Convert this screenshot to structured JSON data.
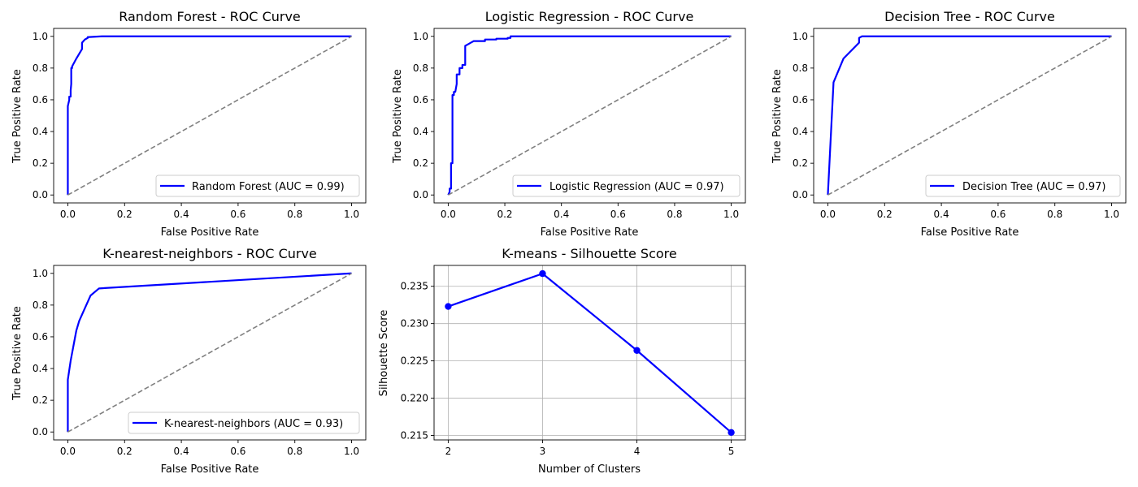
{
  "chart_data": [
    {
      "type": "line",
      "title": "Random Forest - ROC Curve",
      "xlabel": "False Positive Rate",
      "ylabel": "True Positive Rate",
      "xlim": [
        -0.05,
        1.05
      ],
      "ylim": [
        -0.05,
        1.05
      ],
      "xticks": [
        "0.0",
        "0.2",
        "0.4",
        "0.6",
        "0.8",
        "1.0"
      ],
      "yticks": [
        "0.0",
        "0.2",
        "0.4",
        "0.6",
        "0.8",
        "1.0"
      ],
      "grid": false,
      "legend_position": "lower-right",
      "series": [
        {
          "name": "Random Forest (AUC = 0.99)",
          "color": "#0000ff",
          "x": [
            0,
            0,
            0.005,
            0.005,
            0.01,
            0.01,
            0.012,
            0.012,
            0.015,
            0.015,
            0.03,
            0.05,
            0.05,
            0.06,
            0.07,
            0.07,
            0.12,
            1.0
          ],
          "y": [
            0,
            0.56,
            0.6,
            0.62,
            0.62,
            0.66,
            0.7,
            0.8,
            0.8,
            0.81,
            0.86,
            0.92,
            0.96,
            0.98,
            0.99,
            0.995,
            1.0,
            1.0
          ]
        },
        {
          "name": "",
          "color": "#808080",
          "style": "dashed",
          "x": [
            0,
            1
          ],
          "y": [
            0,
            1
          ]
        }
      ]
    },
    {
      "type": "line",
      "title": "Logistic Regression - ROC Curve",
      "xlabel": "False Positive Rate",
      "ylabel": "True Positive Rate",
      "xlim": [
        -0.05,
        1.05
      ],
      "ylim": [
        -0.05,
        1.05
      ],
      "xticks": [
        "0.0",
        "0.2",
        "0.4",
        "0.6",
        "0.8",
        "1.0"
      ],
      "yticks": [
        "0.0",
        "0.2",
        "0.4",
        "0.6",
        "0.8",
        "1.0"
      ],
      "grid": false,
      "legend_position": "lower-right",
      "series": [
        {
          "name": "Logistic Regression (AUC = 0.97)",
          "color": "#0000ff",
          "x": [
            0,
            0.005,
            0.005,
            0.01,
            0.01,
            0.015,
            0.015,
            0.02,
            0.02,
            0.025,
            0.03,
            0.03,
            0.04,
            0.04,
            0.05,
            0.05,
            0.06,
            0.06,
            0.07,
            0.08,
            0.09,
            0.13,
            0.13,
            0.17,
            0.17,
            0.21,
            0.21,
            0.22,
            0.22,
            1.0
          ],
          "y": [
            0,
            0.02,
            0.04,
            0.04,
            0.2,
            0.2,
            0.63,
            0.63,
            0.65,
            0.65,
            0.7,
            0.76,
            0.76,
            0.8,
            0.8,
            0.82,
            0.82,
            0.94,
            0.95,
            0.96,
            0.97,
            0.97,
            0.98,
            0.98,
            0.985,
            0.985,
            0.99,
            0.99,
            1.0,
            1.0
          ]
        },
        {
          "name": "",
          "color": "#808080",
          "style": "dashed",
          "x": [
            0,
            1
          ],
          "y": [
            0,
            1
          ]
        }
      ]
    },
    {
      "type": "line",
      "title": "Decision Tree - ROC Curve",
      "xlabel": "False Positive Rate",
      "ylabel": "True Positive Rate",
      "xlim": [
        -0.05,
        1.05
      ],
      "ylim": [
        -0.05,
        1.05
      ],
      "xticks": [
        "0.0",
        "0.2",
        "0.4",
        "0.6",
        "0.8",
        "1.0"
      ],
      "yticks": [
        "0.0",
        "0.2",
        "0.4",
        "0.6",
        "0.8",
        "1.0"
      ],
      "grid": false,
      "legend_position": "lower-right",
      "series": [
        {
          "name": "Decision Tree (AUC = 0.97)",
          "color": "#0000ff",
          "x": [
            0,
            0.02,
            0.055,
            0.11,
            0.11,
            0.12,
            1.0
          ],
          "y": [
            0,
            0.71,
            0.86,
            0.96,
            0.99,
            1.0,
            1.0
          ]
        },
        {
          "name": "",
          "color": "#808080",
          "style": "dashed",
          "x": [
            0,
            1
          ],
          "y": [
            0,
            1
          ]
        }
      ]
    },
    {
      "type": "line",
      "title": "K-nearest-neighbors - ROC Curve",
      "xlabel": "False Positive Rate",
      "ylabel": "True Positive Rate",
      "xlim": [
        -0.05,
        1.05
      ],
      "ylim": [
        -0.05,
        1.05
      ],
      "xticks": [
        "0.0",
        "0.2",
        "0.4",
        "0.6",
        "0.8",
        "1.0"
      ],
      "yticks": [
        "0.0",
        "0.2",
        "0.4",
        "0.6",
        "0.8",
        "1.0"
      ],
      "grid": false,
      "legend_position": "lower-right",
      "series": [
        {
          "name": "K-nearest-neighbors (AUC = 0.93)",
          "color": "#0000ff",
          "x": [
            0,
            0.0,
            0.01,
            0.03,
            0.04,
            0.08,
            0.11,
            1.0
          ],
          "y": [
            0,
            0.33,
            0.45,
            0.64,
            0.7,
            0.86,
            0.905,
            1.0
          ]
        },
        {
          "name": "",
          "color": "#808080",
          "style": "dashed",
          "x": [
            0,
            1
          ],
          "y": [
            0,
            1
          ]
        }
      ]
    },
    {
      "type": "line",
      "title": "K-means - Silhouette Score",
      "xlabel": "Number of Clusters",
      "ylabel": "Silhouette Score",
      "xlim": [
        1.85,
        5.15
      ],
      "ylim": [
        0.2144,
        0.2378
      ],
      "xticks": [
        "2",
        "3",
        "4",
        "5"
      ],
      "yticks": [
        "0.215",
        "0.220",
        "0.225",
        "0.230",
        "0.235"
      ],
      "grid": true,
      "legend_position": "none",
      "series": [
        {
          "name": "",
          "color": "#0000ff",
          "markers": true,
          "x": [
            2,
            3,
            4,
            5
          ],
          "y": [
            0.2323,
            0.2367,
            0.2264,
            0.2154
          ]
        }
      ]
    }
  ]
}
